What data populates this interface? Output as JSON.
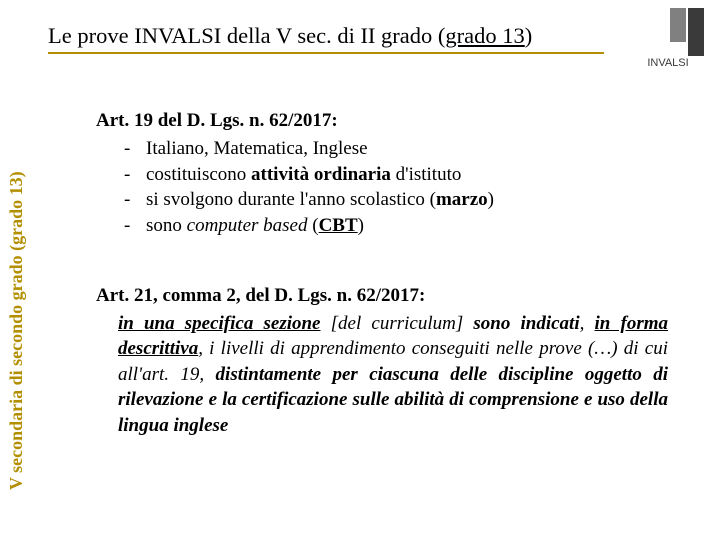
{
  "colors": {
    "accent": "#b38f00",
    "text": "#000000",
    "logo_gray": "#808080",
    "logo_dark": "#3a3a3a",
    "background": "#ffffff"
  },
  "typography": {
    "family": "Times New Roman",
    "title_fontsize": 22.5,
    "body_fontsize": 19,
    "sidebar_fontsize": 18
  },
  "title": {
    "plain1": "Le prove INVALSI della V sec. di II grado (",
    "underlined": "grado 13",
    "plain2": ")"
  },
  "sidebar_label": "V secondaria di secondo grado (grado 13)",
  "art19": {
    "heading": "Art. 19 del D. Lgs. n. 62/2017:",
    "bullets": [
      {
        "dash": "-",
        "html": "Italiano, Matematica, Inglese"
      },
      {
        "dash": "-",
        "html": "costituiscono <b>attività ordinaria</b> d'istituto"
      },
      {
        "dash": "-",
        "html": "si svolgono durante l'anno scolastico (<b>marzo</b>)"
      },
      {
        "dash": "-",
        "html": "sono <i>computer based</i> (<b><span class=\"u\">CBT</span></b>)"
      }
    ]
  },
  "art21": {
    "heading": "Art. 21, comma 2, del D. Lgs. n. 62/2017:",
    "paragraph_html": "<i><b><span class=\"ud\">in una specifica sezione</span></b></i> <i>[del curriculum] <b>sono indicati</b>, <b><span class=\"ud\">in forma descrittiva</span></b>, i livelli di apprendimento conseguiti nelle prove (…) di cui all'art. 19, <b>distintamente per ciascuna delle discipline oggetto di rilevazione e la certificazione sulle abilità di comprensione e uso della lingua inglese</b></i>"
  },
  "logo": {
    "name": "INVALSI",
    "text": "INVALSI"
  }
}
